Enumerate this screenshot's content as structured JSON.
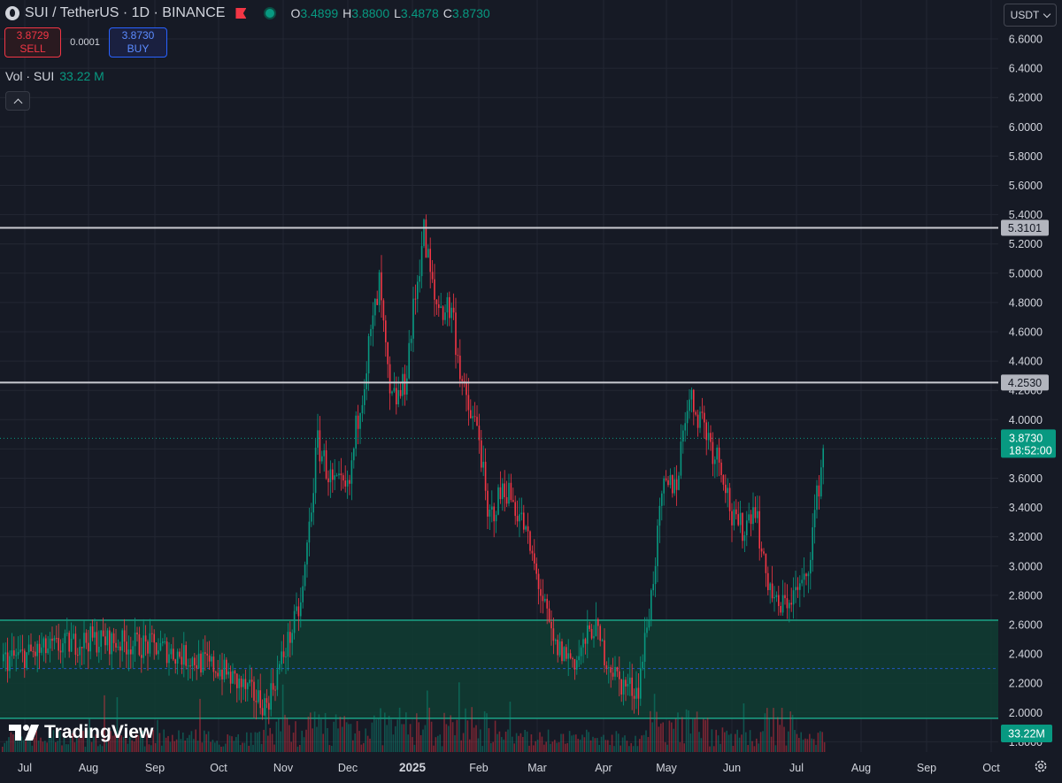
{
  "header": {
    "symbol": "SUI / TetherUS · 1D · BINANCE",
    "ohlc": [
      {
        "key": "O",
        "value": "3.4899"
      },
      {
        "key": "H",
        "value": "3.8800"
      },
      {
        "key": "L",
        "value": "3.4878"
      },
      {
        "key": "C",
        "value": "3.8730"
      }
    ]
  },
  "trade": {
    "sell_price": "3.8729",
    "sell_label": "SELL",
    "spread": "0.0001",
    "buy_price": "3.8730",
    "buy_label": "BUY"
  },
  "volume": {
    "label": "Vol · SUI",
    "value": "33.22 M"
  },
  "currency": "USDT",
  "branding": "TradingView",
  "colors": {
    "up": "#089981",
    "down": "#f23645",
    "bg": "#161a25",
    "zone": "#0f3d33",
    "line": "#d1d4dc"
  },
  "chart_data": {
    "type": "candlestick",
    "price_axis": {
      "ticks": [
        "6.6000",
        "6.4000",
        "6.2000",
        "6.0000",
        "5.8000",
        "5.6000",
        "5.4000",
        "5.2000",
        "5.0000",
        "4.8000",
        "4.6000",
        "4.4000",
        "4.2000",
        "4.0000",
        "3.8000",
        "3.6000",
        "3.4000",
        "3.2000",
        "3.0000",
        "2.8000",
        "2.6000",
        "2.4000",
        "2.2000",
        "2.0000",
        "1.8000"
      ],
      "range": [
        1.76,
        6.72
      ]
    },
    "time_axis": {
      "labels": [
        "Jul",
        "Aug",
        "Sep",
        "Oct",
        "Nov",
        "Dec",
        "2025",
        "Feb",
        "Mar",
        "Apr",
        "May",
        "Jun",
        "Jul",
        "Aug",
        "Sep",
        "Oct"
      ],
      "bold": [
        "2025"
      ]
    },
    "horizontal_lines": [
      {
        "price": 5.3101,
        "label": "5.3101"
      },
      {
        "price": 4.253,
        "label": "4.2530"
      }
    ],
    "last_price": {
      "price": 3.873,
      "label": "3.8730",
      "countdown": "18:52:00"
    },
    "support_zone": [
      1.96,
      2.63
    ],
    "zone_midline": 2.3,
    "volume_label": "33.22M",
    "price_path": [
      [
        "Jul",
        2.35
      ],
      [
        "Aug",
        2.5
      ],
      [
        "Sep",
        2.45
      ],
      [
        "Oct",
        2.3
      ],
      [
        "Nov",
        2.1
      ],
      [
        "Dec",
        3.65
      ],
      [
        "2025",
        4.7
      ],
      [
        "Feb",
        4.45
      ],
      [
        "Mar",
        3.45
      ],
      [
        "Apr",
        2.5
      ],
      [
        "May",
        2.6
      ],
      [
        "Jun",
        3.4
      ],
      [
        "Jul",
        2.85
      ],
      [
        "end",
        3.87
      ]
    ],
    "key_levels": [
      {
        "time": "Nov",
        "price": 2.05
      },
      {
        "time": "Nov",
        "price": 3.85
      },
      {
        "time": "Dec",
        "price": 3.55
      },
      {
        "time": "Dec",
        "price": 4.95
      },
      {
        "time": "2025",
        "price": 5.33
      },
      {
        "time": "Feb",
        "price": 4.1
      },
      {
        "time": "Mar",
        "price": 2.6
      },
      {
        "time": "Apr",
        "price": 2.12
      },
      {
        "time": "May",
        "price": 3.7
      },
      {
        "time": "May",
        "price": 4.27
      },
      {
        "time": "Jun",
        "price": 3.2
      },
      {
        "time": "Jun",
        "price": 2.35
      },
      {
        "time": "Jul",
        "price": 2.9
      },
      {
        "time": "end",
        "price": 3.88
      }
    ]
  }
}
